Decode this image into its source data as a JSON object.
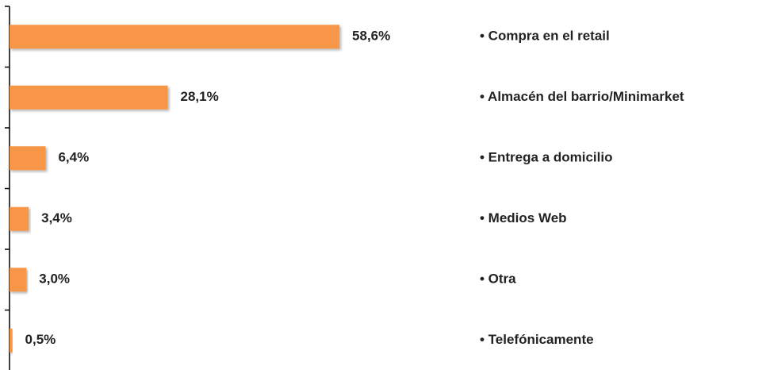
{
  "chart_data": {
    "type": "barh",
    "categories": [
      "• Compra en el retail",
      "• Almacén del barrio/Minimarket",
      "• Entrega a domicilio",
      "• Medios Web",
      "• Otra",
      "• Telefónicamente"
    ],
    "values": [
      58.6,
      28.1,
      6.4,
      3.4,
      3.0,
      0.5
    ],
    "value_labels": [
      "58,6%",
      "28,1%",
      "6,4%",
      "3,4%",
      "3,0%",
      "0,5%"
    ],
    "color": "#f79646"
  }
}
